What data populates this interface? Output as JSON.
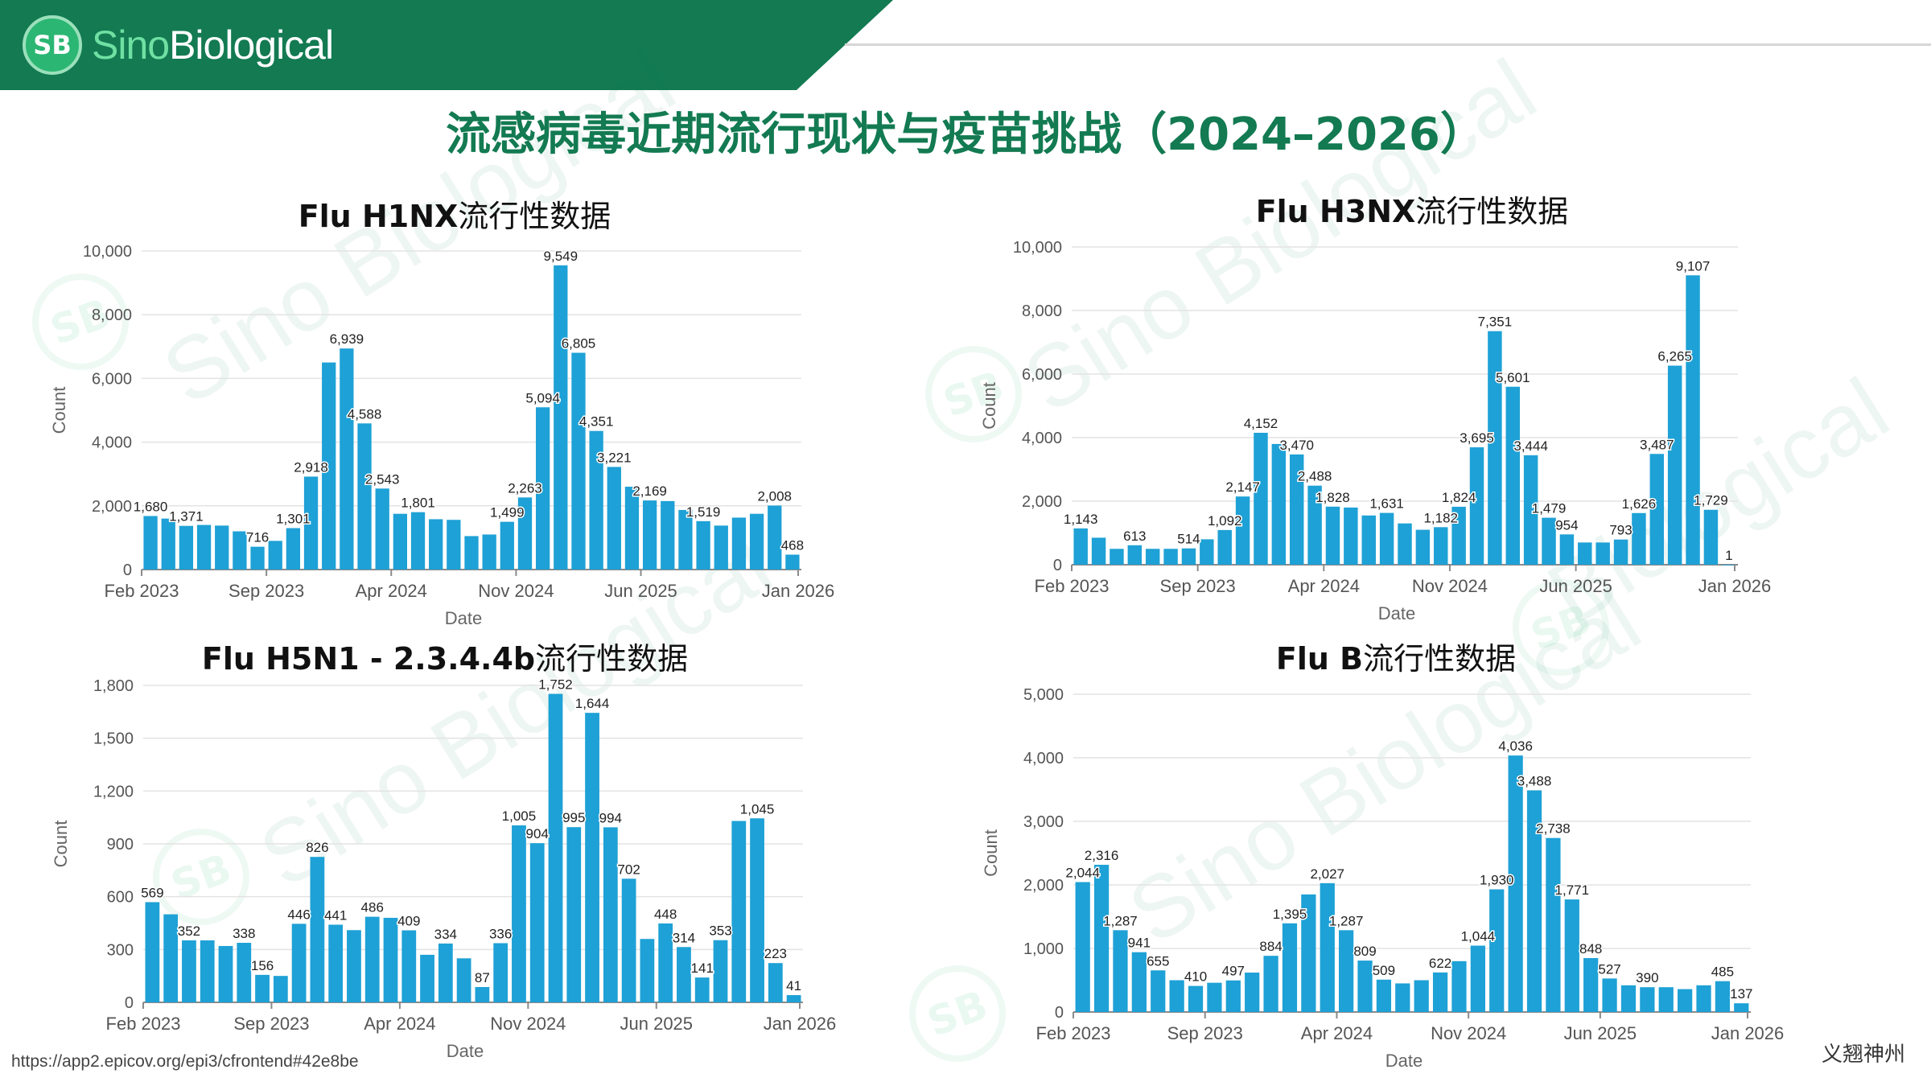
{
  "header": {
    "logo_badge": "SB",
    "logo_sino": "Sino",
    "logo_rest": "Biological"
  },
  "title": "流感病毒近期流行现状与疫苗挑战（2024–2026）",
  "footer": {
    "source_url": "https://app2.epicov.org/epi3/cfrontend#42e8be",
    "signature": "义翘神州"
  },
  "colors": {
    "brand": "#137a52",
    "bar": "#1ea1d6"
  },
  "chart_data": [
    {
      "id": "h1nx",
      "type": "bar",
      "title_bold": "Flu H1NX",
      "title_suffix": "流行性数据",
      "xlabel": "Date",
      "ylabel": "Count",
      "ylim": [
        0,
        10000
      ],
      "yticks": [
        "0",
        "2,000",
        "4,000",
        "6,000",
        "8,000",
        "10,000"
      ],
      "xtick_labels": [
        "Feb 2023",
        "Sep 2023",
        "Apr 2024",
        "Nov 2024",
        "Jun 2025",
        "Jan 2026"
      ],
      "values": [
        1680,
        1600,
        1371,
        1400,
        1380,
        1200,
        716,
        900,
        1301,
        2918,
        6500,
        6939,
        4588,
        2543,
        1750,
        1801,
        1580,
        1560,
        1050,
        1100,
        1499,
        2263,
        5094,
        9549,
        6805,
        4351,
        3221,
        2600,
        2169,
        2150,
        1870,
        1519,
        1380,
        1630,
        1750,
        2008,
        468
      ],
      "labels": {
        "0": "1,680",
        "2": "1,371",
        "6": "716",
        "8": "1,301",
        "9": "2,918",
        "11": "6,939",
        "12": "4,588",
        "13": "2,543",
        "15": "1,801",
        "20": "1,499",
        "21": "2,263",
        "22": "5,094",
        "23": "9,549",
        "24": "6,805",
        "25": "4,351",
        "26": "3,221",
        "28": "2,169",
        "31": "1,519",
        "35": "2,008",
        "36": "468"
      }
    },
    {
      "id": "h3nx",
      "type": "bar",
      "title_bold": "Flu H3NX",
      "title_suffix": "流行性数据",
      "xlabel": "Date",
      "ylabel": "Count",
      "ylim": [
        0,
        10000
      ],
      "yticks": [
        "0",
        "2,000",
        "4,000",
        "6,000",
        "8,000",
        "10,000"
      ],
      "xtick_labels": [
        "Feb 2023",
        "Sep 2023",
        "Apr 2024",
        "Nov 2024",
        "Jun 2025",
        "Jan 2026"
      ],
      "values": [
        1143,
        850,
        500,
        613,
        500,
        500,
        514,
        800,
        1092,
        2147,
        4152,
        3800,
        3470,
        2488,
        1828,
        1800,
        1550,
        1631,
        1300,
        1100,
        1182,
        1824,
        3695,
        7351,
        5601,
        3444,
        1479,
        954,
        700,
        700,
        793,
        1626,
        3487,
        6265,
        9107,
        1729,
        1
      ],
      "labels": {
        "0": "1,143",
        "3": "613",
        "6": "514",
        "8": "1,092",
        "9": "2,147",
        "10": "4,152",
        "12": "3,470",
        "13": "2,488",
        "14": "1,828",
        "17": "1,631",
        "20": "1,182",
        "21": "1,824",
        "22": "3,695",
        "23": "7,351",
        "24": "5,601",
        "25": "3,444",
        "26": "1,479",
        "27": "954",
        "30": "793",
        "31": "1,626",
        "32": "3,487",
        "33": "6,265",
        "34": "9,107",
        "35": "1,729",
        "36": "1"
      }
    },
    {
      "id": "h5n1",
      "type": "bar",
      "title_bold": "Flu H5N1 - 2.3.4.4b",
      "title_suffix": "流行性数据",
      "xlabel": "Date",
      "ylabel": "Count",
      "ylim": [
        0,
        1800
      ],
      "yticks": [
        "0",
        "300",
        "600",
        "900",
        "1,200",
        "1,500",
        "1,800"
      ],
      "xtick_labels": [
        "Feb 2023",
        "Sep 2023",
        "Apr 2024",
        "Nov 2024",
        "Jun 2025",
        "Jan 2026"
      ],
      "values": [
        569,
        500,
        352,
        352,
        320,
        338,
        156,
        150,
        446,
        826,
        441,
        410,
        486,
        480,
        409,
        270,
        334,
        250,
        87,
        336,
        1005,
        904,
        1752,
        995,
        1644,
        994,
        702,
        360,
        448,
        314,
        141,
        353,
        1030,
        1045,
        223,
        41
      ],
      "labels": {
        "0": "569",
        "2": "352",
        "5": "338",
        "6": "156",
        "8": "446",
        "9": "826",
        "10": "441",
        "12": "486",
        "14": "409",
        "16": "334",
        "18": "87",
        "19": "336",
        "20": "1,005",
        "21": "904",
        "22": "1,752",
        "23": "995",
        "24": "1,644",
        "25": "994",
        "26": "702",
        "28": "448",
        "29": "314",
        "30": "141",
        "31": "353",
        "33": "1,045",
        "34": "223",
        "35": "41"
      }
    },
    {
      "id": "flub",
      "type": "bar",
      "title_bold": "Flu B",
      "title_suffix": "流行性数据",
      "xlabel": "Date",
      "ylabel": "Count",
      "ylim": [
        0,
        5000
      ],
      "yticks": [
        "0",
        "1,000",
        "2,000",
        "3,000",
        "4,000",
        "5,000"
      ],
      "xtick_labels": [
        "Feb 2023",
        "Sep 2023",
        "Apr 2024",
        "Nov 2024",
        "Jun 2025",
        "Jan 2026"
      ],
      "values": [
        2044,
        2316,
        1287,
        941,
        655,
        500,
        410,
        460,
        497,
        620,
        884,
        1395,
        1850,
        2027,
        1287,
        809,
        509,
        450,
        500,
        622,
        800,
        1044,
        1930,
        4036,
        3488,
        2738,
        1771,
        848,
        527,
        420,
        390,
        390,
        360,
        420,
        485,
        137
      ],
      "labels": {
        "0": "2,044",
        "1": "2,316",
        "2": "1,287",
        "3": "941",
        "4": "655",
        "6": "410",
        "8": "497",
        "10": "884",
        "11": "1,395",
        "13": "2,027",
        "14": "1,287",
        "15": "809",
        "16": "509",
        "19": "622",
        "21": "1,044",
        "22": "1,930",
        "23": "4,036",
        "24": "3,488",
        "25": "2,738",
        "26": "1,771",
        "27": "848",
        "28": "527",
        "30": "390",
        "34": "485",
        "35": "137"
      }
    }
  ]
}
